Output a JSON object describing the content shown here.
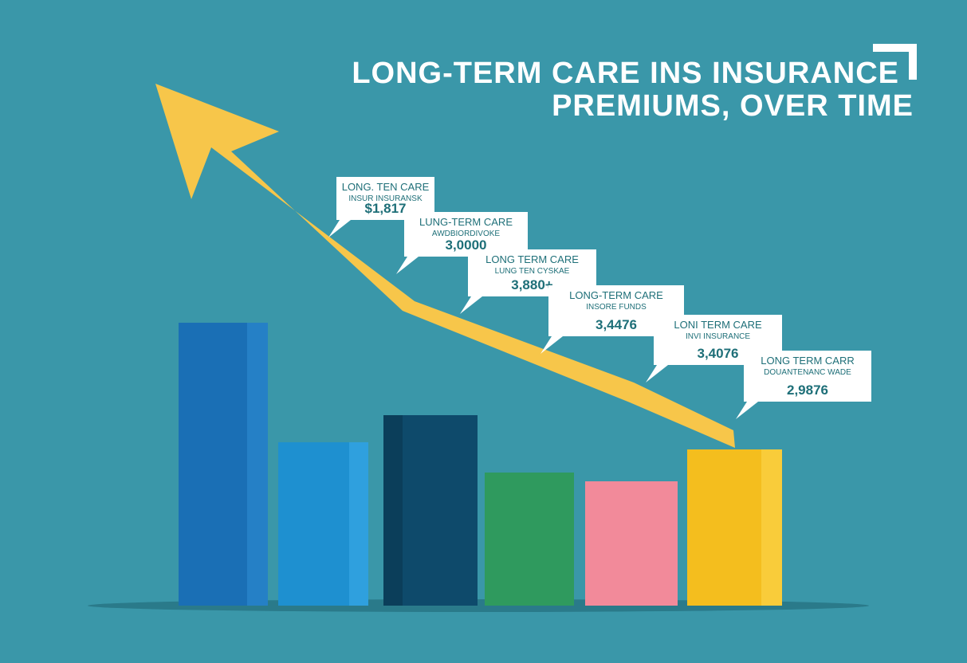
{
  "title": {
    "line1": "LONG-TERM CARE INS INSURANCE",
    "line2": "PREMIUMS, OVER TIME"
  },
  "callouts": [
    {
      "heading": "LONG. TEN CARE",
      "subheading": "INSUR INSURANSK",
      "value": "$1,817"
    },
    {
      "heading": "LUNG-TERM CARE",
      "subheading": "AWDBIORDIVOKE",
      "value": "3,0000"
    },
    {
      "heading": "LONG TERM CARE",
      "subheading": "LUNG TEN CYSKAE",
      "value": "3,880+"
    },
    {
      "heading": "LONG-TERM CARE",
      "subheading": "INSORE FUNDS",
      "value": "3,4476"
    },
    {
      "heading": "LONI TERM CARE",
      "subheading": "INVI INSURANCE",
      "value": "3,4076"
    },
    {
      "heading": "LONG TERM CARR",
      "subheading": "DOUANTENANC WADE",
      "value": "2,9876"
    }
  ]
}
